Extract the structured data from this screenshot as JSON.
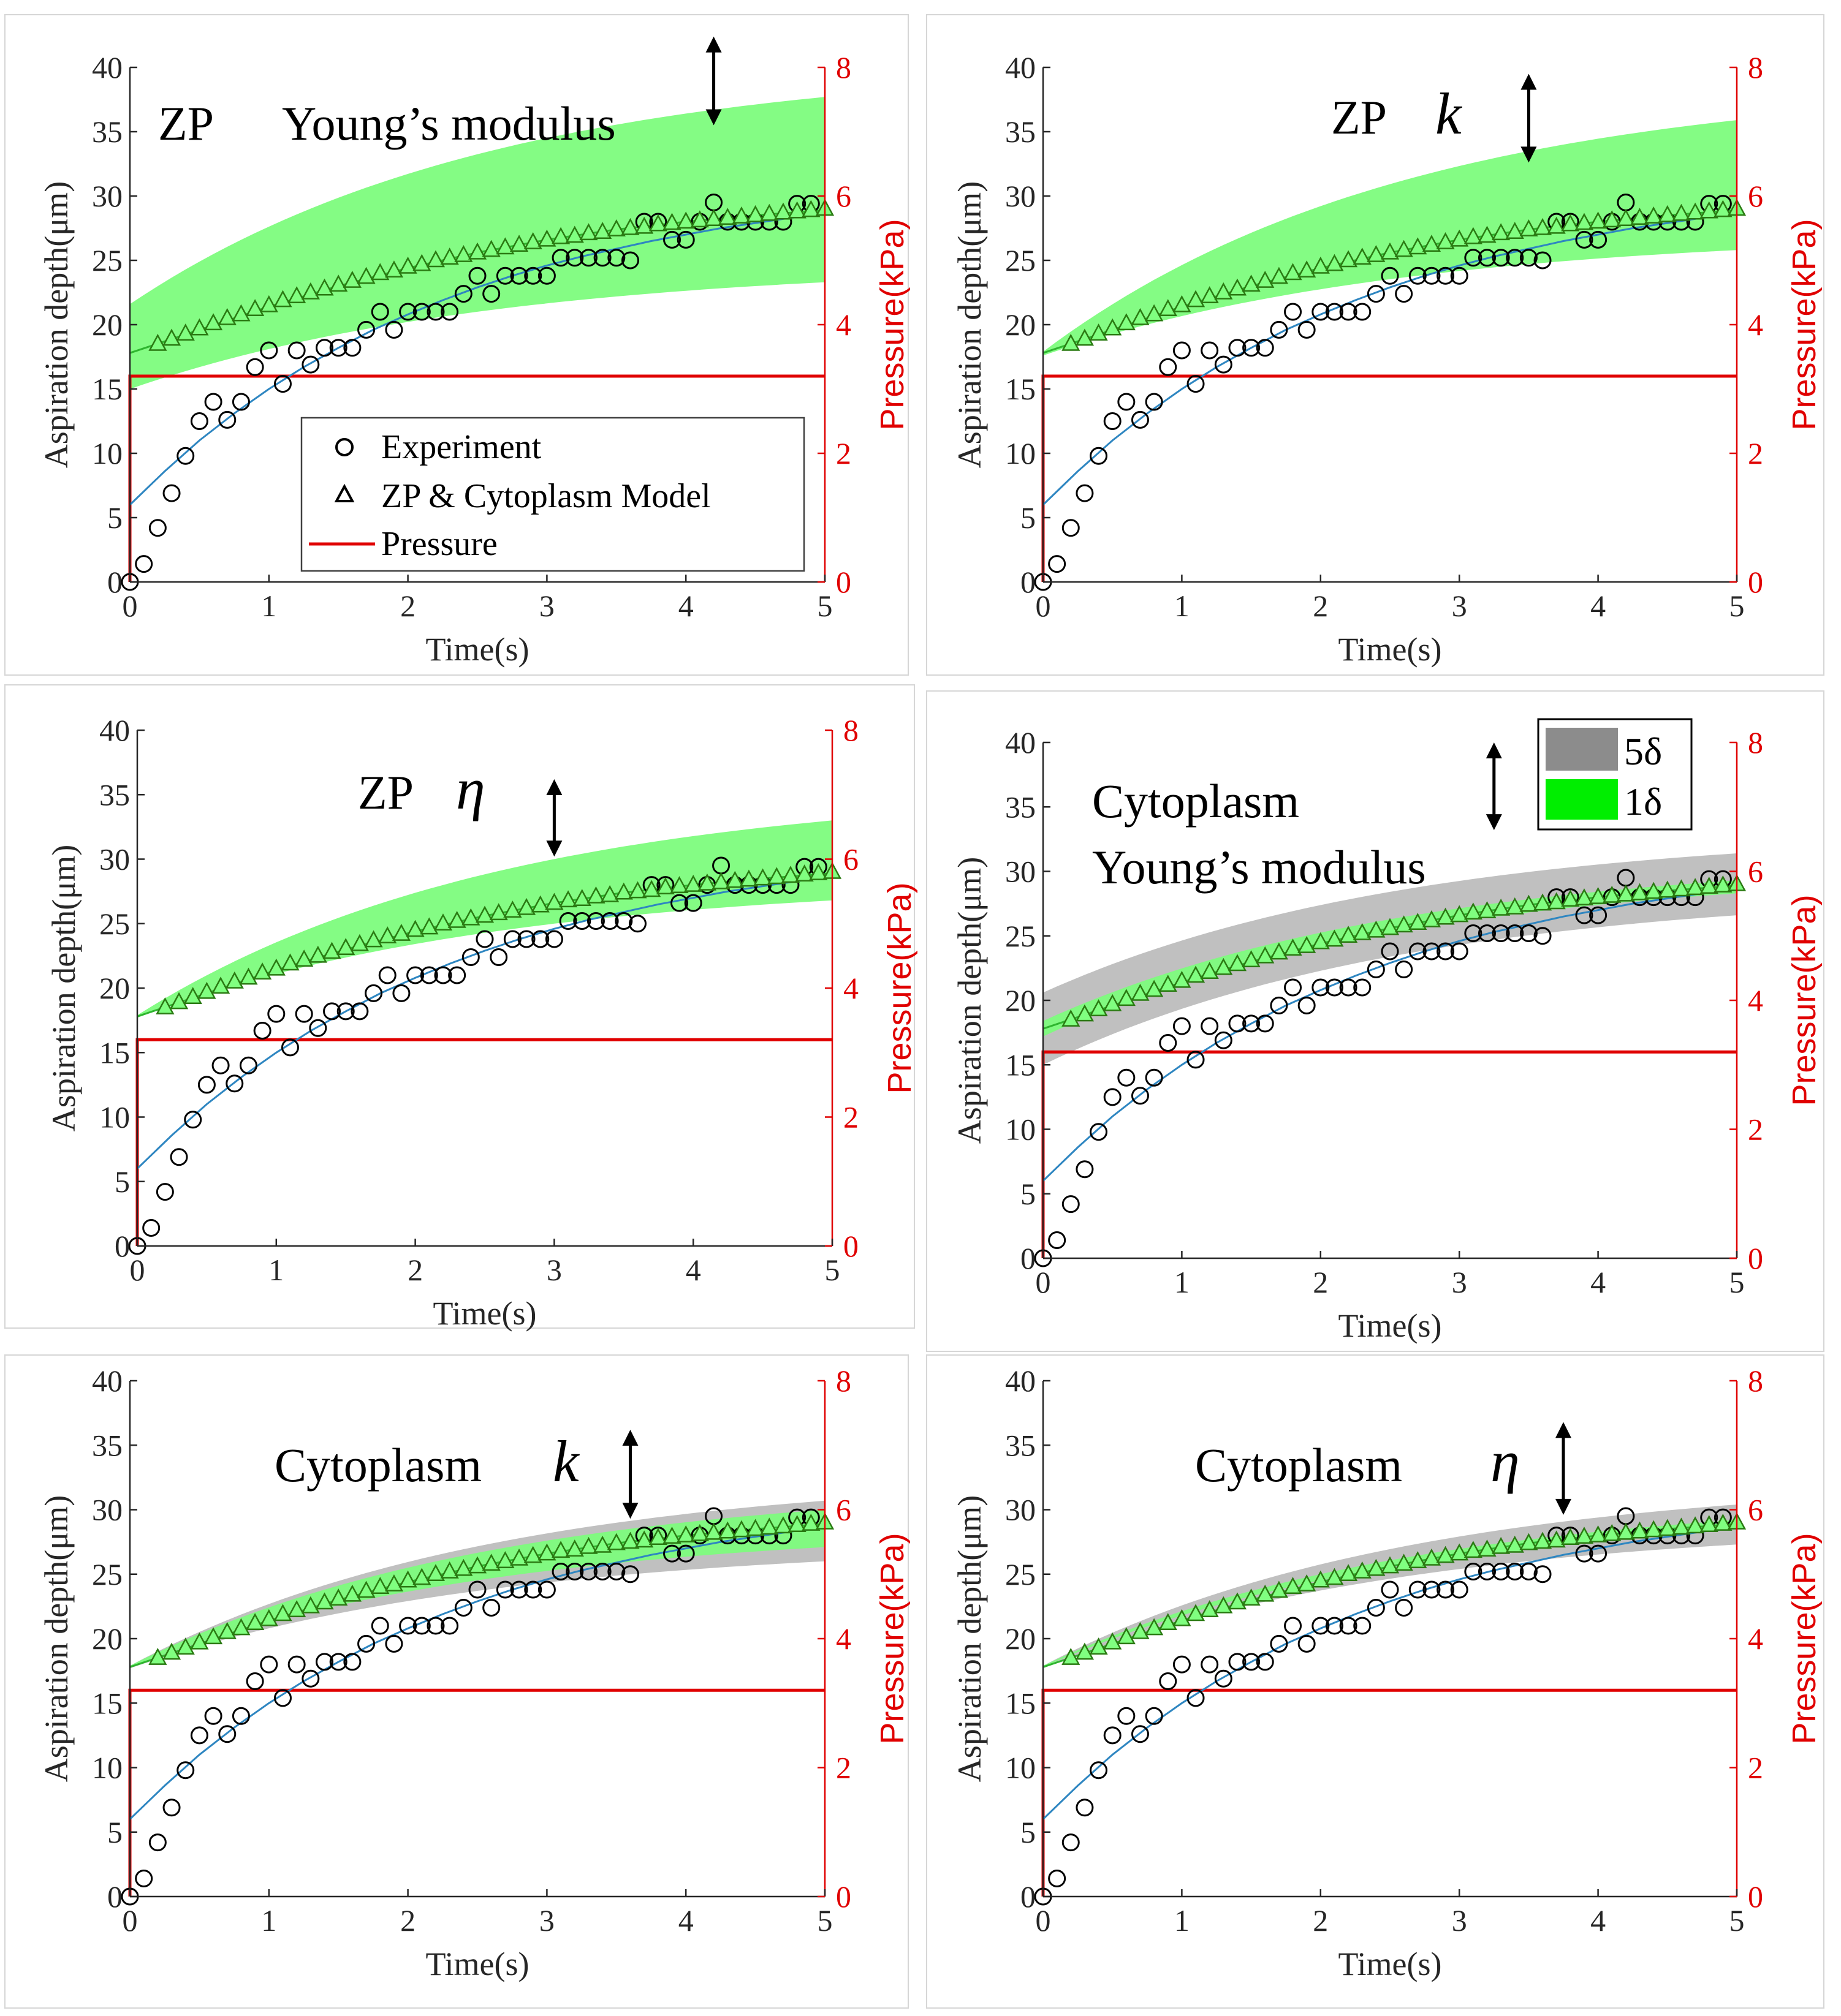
{
  "figure": {
    "legend": {
      "experiment": "Experiment",
      "model": "ZP & Cytoplasm Model",
      "pressure": "Pressure"
    },
    "band_legend": {
      "wide": "5δ",
      "narrow": "1δ"
    },
    "colors": {
      "experiment_marker": "#000000",
      "model_marker": "#2a7a12",
      "model_fill": "#80ff80",
      "fit_line": "#2e86c1",
      "pressure_line": "#e00000",
      "band_narrow": "#7dfc7d",
      "band_wide": "#bdbdbd"
    }
  },
  "chart_data": [
    {
      "type": "scatter",
      "annotation_label": "ZP",
      "annotation_param": "Young’s modulus",
      "xlabel": "Time(s)",
      "ylabel": "Aspiration depth(μm)",
      "y2label": "Pressure(kPa)",
      "xlim": [
        0,
        5
      ],
      "ylim": [
        0,
        40
      ],
      "y2lim": [
        0,
        8
      ],
      "x_ticks": [
        0,
        1,
        2,
        3,
        4,
        5
      ],
      "y_ticks": [
        0,
        5,
        10,
        15,
        20,
        25,
        30,
        35,
        40
      ],
      "y2_ticks": [
        0,
        2,
        4,
        6,
        8
      ],
      "bands": [
        {
          "name": "1δ",
          "upper": [
            21.6,
            37.7
          ],
          "lower": [
            15.0,
            23.3
          ],
          "color": "#7dfc7d"
        }
      ],
      "pressure_level_um": 16,
      "arrow_x": 4.2,
      "arrow_top": 42.4,
      "arrow_bottom": 35.5,
      "show_legend": true,
      "show_band_legend": false
    },
    {
      "type": "scatter",
      "annotation_label": "ZP",
      "annotation_param": "k",
      "xlabel": "Time(s)",
      "ylabel": "Aspiration depth(μm)",
      "y2label": "Pressure(kPa)",
      "xlim": [
        0,
        5
      ],
      "ylim": [
        0,
        40
      ],
      "y2lim": [
        0,
        8
      ],
      "x_ticks": [
        0,
        1,
        2,
        3,
        4,
        5
      ],
      "y_ticks": [
        0,
        5,
        10,
        15,
        20,
        25,
        30,
        35,
        40
      ],
      "y2_ticks": [
        0,
        2,
        4,
        6,
        8
      ],
      "bands": [
        {
          "name": "1δ",
          "upper": [
            17.9,
            35.9
          ],
          "lower": [
            17.6,
            25.8
          ],
          "color": "#7dfc7d"
        }
      ],
      "pressure_level_um": 16,
      "arrow_x": 3.5,
      "arrow_top": 39.5,
      "arrow_bottom": 32.6,
      "show_legend": false,
      "show_band_legend": false
    },
    {
      "type": "scatter",
      "annotation_label": "ZP",
      "annotation_param": "η",
      "xlabel": "Time(s)",
      "ylabel": "Aspiration depth(μm)",
      "y2label": "Pressure(kPa)",
      "xlim": [
        0,
        5
      ],
      "ylim": [
        0,
        40
      ],
      "y2lim": [
        0,
        8
      ],
      "x_ticks": [
        0,
        1,
        2,
        3,
        4,
        5
      ],
      "y_ticks": [
        0,
        5,
        10,
        15,
        20,
        25,
        30,
        35,
        40
      ],
      "y2_ticks": [
        0,
        2,
        4,
        6,
        8
      ],
      "bands": [
        {
          "name": "1δ",
          "upper": [
            17.9,
            33.0
          ],
          "lower": [
            17.7,
            26.8
          ],
          "color": "#7dfc7d"
        }
      ],
      "pressure_level_um": 16,
      "arrow_x": 3.0,
      "arrow_top": 36.2,
      "arrow_bottom": 30.2,
      "show_legend": false,
      "show_band_legend": false
    },
    {
      "type": "scatter",
      "annotation_label": "Cytoplasm",
      "annotation_param": "Young’s modulus",
      "xlabel": "Time(s)",
      "ylabel": "Aspiration depth(μm)",
      "y2label": "Pressure(kPa)",
      "xlim": [
        0,
        5
      ],
      "ylim": [
        0,
        40
      ],
      "y2lim": [
        0,
        8
      ],
      "x_ticks": [
        0,
        1,
        2,
        3,
        4,
        5
      ],
      "y_ticks": [
        0,
        5,
        10,
        15,
        20,
        25,
        30,
        35,
        40
      ],
      "y2_ticks": [
        0,
        2,
        4,
        6,
        8
      ],
      "bands": [
        {
          "name": "5δ",
          "upper": [
            20.6,
            31.4
          ],
          "lower": [
            15.0,
            26.6
          ],
          "color": "#bdbdbd"
        },
        {
          "name": "1δ",
          "upper": [
            18.4,
            29.3
          ],
          "lower": [
            17.2,
            28.3
          ],
          "color": "#7dfc7d"
        }
      ],
      "pressure_level_um": 16,
      "arrow_x": 3.25,
      "arrow_top": 40.0,
      "arrow_bottom": 33.2,
      "show_legend": false,
      "show_band_legend": true
    },
    {
      "type": "scatter",
      "annotation_label": "Cytoplasm",
      "annotation_param": "k",
      "xlabel": "Time(s)",
      "ylabel": "Aspiration depth(μm)",
      "y2label": "Pressure(kPa)",
      "xlim": [
        0,
        5
      ],
      "ylim": [
        0,
        40
      ],
      "y2lim": [
        0,
        8
      ],
      "x_ticks": [
        0,
        1,
        2,
        3,
        4,
        5
      ],
      "y_ticks": [
        0,
        5,
        10,
        15,
        20,
        25,
        30,
        35,
        40
      ],
      "y2_ticks": [
        0,
        2,
        4,
        6,
        8
      ],
      "bands": [
        {
          "name": "5δ",
          "upper": [
            17.9,
            30.7
          ],
          "lower": [
            17.7,
            26.0
          ],
          "color": "#bdbdbd"
        },
        {
          "name": "1δ",
          "upper": [
            17.9,
            30.0
          ],
          "lower": [
            17.8,
            27.1
          ],
          "color": "#7dfc7d"
        }
      ],
      "pressure_level_um": 16,
      "arrow_x": 3.6,
      "arrow_top": 36.2,
      "arrow_bottom": 29.3,
      "show_legend": false,
      "show_band_legend": false
    },
    {
      "type": "scatter",
      "annotation_label": "Cytoplasm",
      "annotation_param": "η",
      "xlabel": "Time(s)",
      "ylabel": "Aspiration depth(μm)",
      "y2label": "Pressure(kPa)",
      "xlim": [
        0,
        5
      ],
      "ylim": [
        0,
        40
      ],
      "y2lim": [
        0,
        8
      ],
      "x_ticks": [
        0,
        1,
        2,
        3,
        4,
        5
      ],
      "y_ticks": [
        0,
        5,
        10,
        15,
        20,
        25,
        30,
        35,
        40
      ],
      "y2_ticks": [
        0,
        2,
        4,
        6,
        8
      ],
      "bands": [
        {
          "name": "5δ",
          "upper": [
            17.9,
            30.4
          ],
          "lower": [
            17.7,
            27.3
          ],
          "color": "#bdbdbd"
        },
        {
          "name": "1δ",
          "upper": [
            17.9,
            29.2
          ],
          "lower": [
            17.8,
            28.5
          ],
          "color": "#7dfc7d"
        }
      ],
      "pressure_level_um": 16,
      "arrow_x": 3.75,
      "arrow_top": 36.8,
      "arrow_bottom": 29.6,
      "show_legend": false,
      "show_band_legend": false
    }
  ],
  "shared_series": {
    "experiment": {
      "x": [
        0,
        0.1,
        0.2,
        0.3,
        0.4,
        0.5,
        0.6,
        0.7,
        0.8,
        0.9,
        1.0,
        1.1,
        1.2,
        1.3,
        1.4,
        1.5,
        1.6,
        1.7,
        1.8,
        1.9,
        2.0,
        2.1,
        2.2,
        2.3,
        2.4,
        2.5,
        2.6,
        2.7,
        2.8,
        2.9,
        3.0,
        3.1,
        3.2,
        3.3,
        3.4,
        3.5,
        3.6,
        3.7,
        3.8,
        3.9,
        4.0,
        4.1,
        4.2,
        4.3,
        4.4,
        4.5,
        4.6,
        4.7,
        4.8,
        4.9
      ],
      "y": [
        0.0,
        1.4,
        4.2,
        6.9,
        9.8,
        12.5,
        14.0,
        12.6,
        14.0,
        16.7,
        18.0,
        15.4,
        18.0,
        16.9,
        18.2,
        18.2,
        18.2,
        19.6,
        21.0,
        19.6,
        21.0,
        21.0,
        21.0,
        21.0,
        22.4,
        23.8,
        22.4,
        23.8,
        23.8,
        23.8,
        23.8,
        25.2,
        25.2,
        25.2,
        25.2,
        25.2,
        25.0,
        28.0,
        28.0,
        26.6,
        26.6,
        28.0,
        29.5,
        28.0,
        28.0,
        28.0,
        28.0,
        28.0,
        29.4,
        29.4
      ]
    },
    "model": {
      "x": [
        0.2,
        0.3,
        0.4,
        0.5,
        0.6,
        0.7,
        0.8,
        0.9,
        1.0,
        1.1,
        1.2,
        1.3,
        1.4,
        1.5,
        1.6,
        1.7,
        1.8,
        1.9,
        2.0,
        2.1,
        2.2,
        2.3,
        2.4,
        2.5,
        2.6,
        2.7,
        2.8,
        2.9,
        3.0,
        3.1,
        3.2,
        3.3,
        3.4,
        3.5,
        3.6,
        3.7,
        3.8,
        3.9,
        4.0,
        4.1,
        4.2,
        4.3,
        4.4,
        4.5,
        4.6,
        4.7,
        4.8,
        4.9,
        5.0
      ],
      "y": [
        18.5,
        18.9,
        19.3,
        19.7,
        20.1,
        20.5,
        20.8,
        21.2,
        21.5,
        21.9,
        22.2,
        22.5,
        22.8,
        23.1,
        23.4,
        23.7,
        24.0,
        24.2,
        24.5,
        24.7,
        25.0,
        25.2,
        25.4,
        25.6,
        25.8,
        26.0,
        26.2,
        26.4,
        26.6,
        26.8,
        26.9,
        27.1,
        27.2,
        27.4,
        27.5,
        27.6,
        27.8,
        27.9,
        28.0,
        28.1,
        28.2,
        28.3,
        28.4,
        28.5,
        28.6,
        28.7,
        28.8,
        28.9,
        29.0
      ]
    },
    "fit_line": {
      "x": [
        0,
        0.25,
        0.5,
        0.75,
        1.0,
        1.25,
        1.5,
        1.75,
        2.0,
        2.25,
        2.5,
        2.75,
        3.0,
        3.25,
        3.5,
        3.75,
        4.0,
        4.25,
        4.5,
        4.75,
        5.0
      ],
      "y": [
        6.0,
        8.6,
        11.0,
        13.1,
        15.0,
        16.7,
        18.2,
        19.6,
        20.8,
        21.9,
        22.9,
        23.8,
        24.6,
        25.3,
        25.9,
        26.5,
        27.0,
        27.5,
        27.9,
        28.3,
        28.6
      ]
    },
    "model_fit_line": {
      "x": [
        0,
        0.5,
        1.0,
        1.5,
        2.0,
        2.5,
        3.0,
        3.5,
        4.0,
        4.5,
        5.0
      ],
      "y": [
        17.8,
        19.6,
        21.4,
        23.0,
        24.4,
        25.6,
        26.6,
        27.4,
        28.0,
        28.5,
        28.9
      ]
    }
  }
}
